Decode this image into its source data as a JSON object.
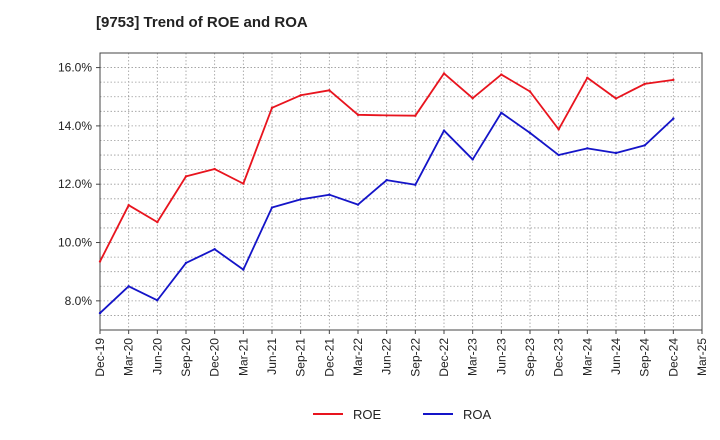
{
  "chart_data": {
    "type": "line",
    "title": "[9753]  Trend of ROE and ROA",
    "xlabel": "",
    "ylabel": "",
    "categories": [
      "Dec-19",
      "Mar-20",
      "Jun-20",
      "Sep-20",
      "Dec-20",
      "Mar-21",
      "Jun-21",
      "Sep-21",
      "Dec-21",
      "Mar-22",
      "Jun-22",
      "Sep-22",
      "Dec-22",
      "Mar-23",
      "Jun-23",
      "Sep-23",
      "Dec-23",
      "Mar-24",
      "Jun-24",
      "Sep-24",
      "Dec-24",
      "Mar-25"
    ],
    "ylim": [
      7.0,
      16.5
    ],
    "yticks": [
      8.0,
      10.0,
      12.0,
      14.0,
      16.0
    ],
    "ytick_labels": [
      "8.0%",
      "10.0%",
      "12.0%",
      "14.0%",
      "16.0%"
    ],
    "grid": true,
    "legend_position": "bottom",
    "series": [
      {
        "name": "ROE",
        "color": "#e8141e",
        "values": [
          9.35,
          11.28,
          10.7,
          12.27,
          12.52,
          12.02,
          14.62,
          15.05,
          15.22,
          14.38,
          14.36,
          14.35,
          15.8,
          14.95,
          15.76,
          15.18,
          13.88,
          15.65,
          14.94,
          15.44,
          15.58,
          null
        ]
      },
      {
        "name": "ROA",
        "color": "#1414c8",
        "values": [
          7.58,
          8.5,
          8.02,
          9.3,
          9.77,
          9.07,
          11.2,
          11.48,
          11.64,
          11.3,
          12.14,
          11.98,
          13.84,
          12.85,
          14.45,
          13.76,
          13.0,
          13.23,
          13.07,
          13.33,
          14.25,
          null
        ]
      }
    ]
  }
}
